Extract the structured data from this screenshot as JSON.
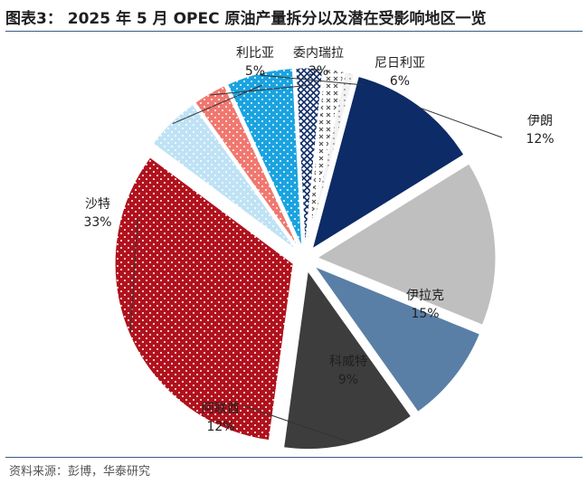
{
  "header": {
    "title": "图表3：  2025 年 5 月 OPEC 原油产量拆分以及潜在受影响地区一览"
  },
  "footer": {
    "source": "资料来源：彭博，华泰研究"
  },
  "chart_data": {
    "type": "pie",
    "title": "",
    "slices": [
      {
        "label": "伊朗",
        "value_text": "12%",
        "value": 12,
        "color": "#0d2b66",
        "pattern": "solid"
      },
      {
        "label": "伊拉克",
        "value_text": "15%",
        "value": 15,
        "color": "#bfbfbf",
        "pattern": "solid"
      },
      {
        "label": "科威特",
        "value_text": "9%",
        "value": 9,
        "color": "#5a7fa6",
        "pattern": "solid"
      },
      {
        "label": "阿联酋",
        "value_text": "12%",
        "value": 12,
        "color": "#3d3d3d",
        "pattern": "solid"
      },
      {
        "label": "沙特",
        "value_text": "33%",
        "value": 33,
        "color": "#b0121d",
        "pattern": "dots"
      },
      {
        "label": "利比亚",
        "value_text": "5%",
        "value": 5,
        "color": "#bfe2f5",
        "pattern": "dots"
      },
      {
        "label": "委内瑞拉",
        "value_text": "3%",
        "value": 3,
        "color": "#f07870",
        "pattern": "dots"
      },
      {
        "label": "尼日利亚",
        "value_text": "6%",
        "value": 6,
        "color": "#1aa3e0",
        "pattern": "dots"
      },
      {
        "label": "",
        "value_text": "",
        "value": 2.4,
        "color": "#0d2b66",
        "pattern": "crosshatch"
      },
      {
        "label": "",
        "value_text": "",
        "value": 1.8,
        "color": "#555555",
        "pattern": "xmarks"
      },
      {
        "label": "",
        "value_text": "",
        "value": 0.8,
        "color": "#e8e8e8",
        "pattern": "dots"
      }
    ]
  }
}
